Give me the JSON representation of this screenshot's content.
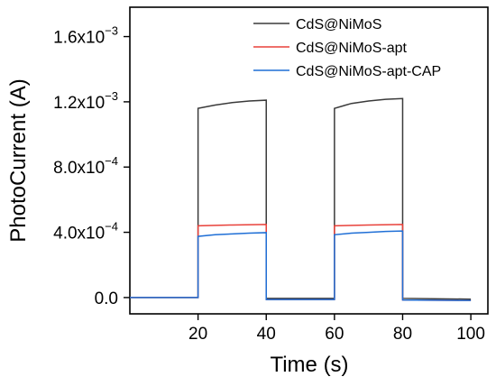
{
  "chart_data": {
    "type": "line",
    "xlabel": "Time (s)",
    "ylabel": "PhotoCurrent (A)",
    "xlim": [
      0,
      105
    ],
    "ylim": [
      -0.0001,
      0.00178
    ],
    "x_ticks": [
      20,
      40,
      60,
      80,
      100
    ],
    "y_ticks": [
      {
        "value": 0.0,
        "mantissa": "0.0",
        "exponent": ""
      },
      {
        "value": 0.0004,
        "mantissa": "4.0x10",
        "exponent": "−4"
      },
      {
        "value": 0.0008,
        "mantissa": "8.0x10",
        "exponent": "−4"
      },
      {
        "value": 0.0012,
        "mantissa": "1.2x10",
        "exponent": "−3"
      },
      {
        "value": 0.0016,
        "mantissa": "1.6x10",
        "exponent": "−3"
      }
    ],
    "grid": false,
    "legend_position": "top-right",
    "series": [
      {
        "name": "CdS@NiMoS",
        "color": "#3a3a3a",
        "points": [
          [
            0,
            0
          ],
          [
            20,
            0
          ],
          [
            20,
            0.00116
          ],
          [
            25,
            0.00118
          ],
          [
            30,
            0.001195
          ],
          [
            35,
            0.001205
          ],
          [
            40,
            0.00121
          ],
          [
            40,
            -5e-06
          ],
          [
            60,
            -5e-06
          ],
          [
            60,
            0.00116
          ],
          [
            65,
            0.00119
          ],
          [
            70,
            0.001205
          ],
          [
            75,
            0.001215
          ],
          [
            80,
            0.00122
          ],
          [
            80,
            -5e-06
          ],
          [
            100,
            -1e-05
          ]
        ]
      },
      {
        "name": "CdS@NiMoS-apt",
        "color": "#e8413a",
        "points": [
          [
            0,
            0
          ],
          [
            20,
            0
          ],
          [
            20,
            0.00044
          ],
          [
            30,
            0.000445
          ],
          [
            40,
            0.000448
          ],
          [
            40,
            -1.2e-05
          ],
          [
            60,
            -1.2e-05
          ],
          [
            60,
            0.00044
          ],
          [
            70,
            0.000445
          ],
          [
            80,
            0.000448
          ],
          [
            80,
            -1.5e-05
          ],
          [
            100,
            -1.8e-05
          ]
        ]
      },
      {
        "name": "CdS@NiMoS-apt-CAP",
        "color": "#1f6fd6",
        "points": [
          [
            0,
            0
          ],
          [
            20,
            0
          ],
          [
            20,
            0.000375
          ],
          [
            25,
            0.000385
          ],
          [
            30,
            0.00039
          ],
          [
            35,
            0.000395
          ],
          [
            40,
            0.000398
          ],
          [
            40,
            -1.2e-05
          ],
          [
            60,
            -1.2e-05
          ],
          [
            60,
            0.000385
          ],
          [
            65,
            0.000395
          ],
          [
            70,
            0.0004
          ],
          [
            75,
            0.000405
          ],
          [
            80,
            0.000408
          ],
          [
            80,
            -1.5e-05
          ],
          [
            100,
            -1.8e-05
          ]
        ]
      }
    ]
  }
}
